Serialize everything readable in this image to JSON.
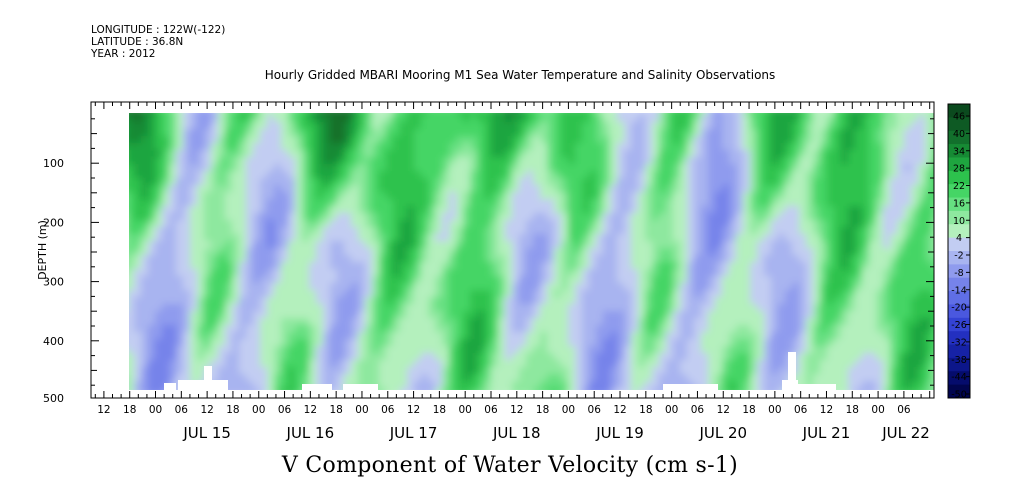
{
  "header": {
    "longitude": "LONGITUDE : 122W(-122)",
    "latitude": "LATITUDE : 36.8N",
    "year": "YEAR : 2012",
    "title": "Hourly Gridded MBARI Mooring M1 Sea Water Temperature and Salinity Observations"
  },
  "chart_data": {
    "type": "heatmap",
    "title": "Hourly Gridded MBARI Mooring M1 Sea Water Temperature and Salinity Observations",
    "variable": "V Component of Water Velocity (cm s-1)",
    "xlabel": "",
    "ylabel": "DEPTH (m)",
    "x_range": [
      "2012-07-14T09:00",
      "2012-07-22T13:00"
    ],
    "ylim": [
      500,
      0
    ],
    "y_ticks": [
      100,
      200,
      300,
      400,
      500
    ],
    "x_hour_ticks": [
      "12",
      "18",
      "00",
      "06",
      "12",
      "18",
      "00",
      "06",
      "12",
      "18",
      "00",
      "06",
      "12",
      "18",
      "00",
      "06",
      "12",
      "18",
      "00",
      "06",
      "12",
      "18",
      "00",
      "06",
      "12",
      "18",
      "00",
      "06",
      "12",
      "18",
      "00",
      "06"
    ],
    "x_day_labels": [
      "JUL 15",
      "JUL 16",
      "JUL 17",
      "JUL 18",
      "JUL 19",
      "JUL 20",
      "JUL 21",
      "JUL 22"
    ],
    "colorbar": {
      "levels": [
        48,
        46,
        44,
        40,
        36,
        34,
        32,
        28,
        24,
        22,
        20,
        16,
        12,
        10,
        8,
        4,
        0,
        -2,
        -4,
        -8,
        -12,
        -14,
        -16,
        -20,
        -24,
        -26,
        -28,
        -32,
        -36,
        -38,
        -40,
        -44,
        -48,
        -50
      ],
      "labels": [
        "46",
        "40",
        "34",
        "28",
        "22",
        "16",
        "10",
        "4",
        "-2",
        "-8",
        "-14",
        "-20",
        "-26",
        "-32",
        "-38",
        "-44",
        "-50"
      ],
      "colors": [
        "#0b4a1e",
        "#0e5a24",
        "#12702c",
        "#168a34",
        "#1ea53f",
        "#2dc24d",
        "#45d565",
        "#66e081",
        "#8ee89f",
        "#b4f0bd",
        "#c2cdf2",
        "#a8b4f0",
        "#8f9bee",
        "#7683ea",
        "#5f6ee6",
        "#4a58df",
        "#3443d4",
        "#2330c0",
        "#1622a6",
        "#0c168a",
        "#050c6c",
        "#01054e"
      ]
    },
    "summary": {
      "surface_0_150m": "positive, up to ~40 cm/s (dark green)",
      "deep_150_480m": "mostly -20 to +10 cm/s with alternating blue/green bands"
    }
  }
}
